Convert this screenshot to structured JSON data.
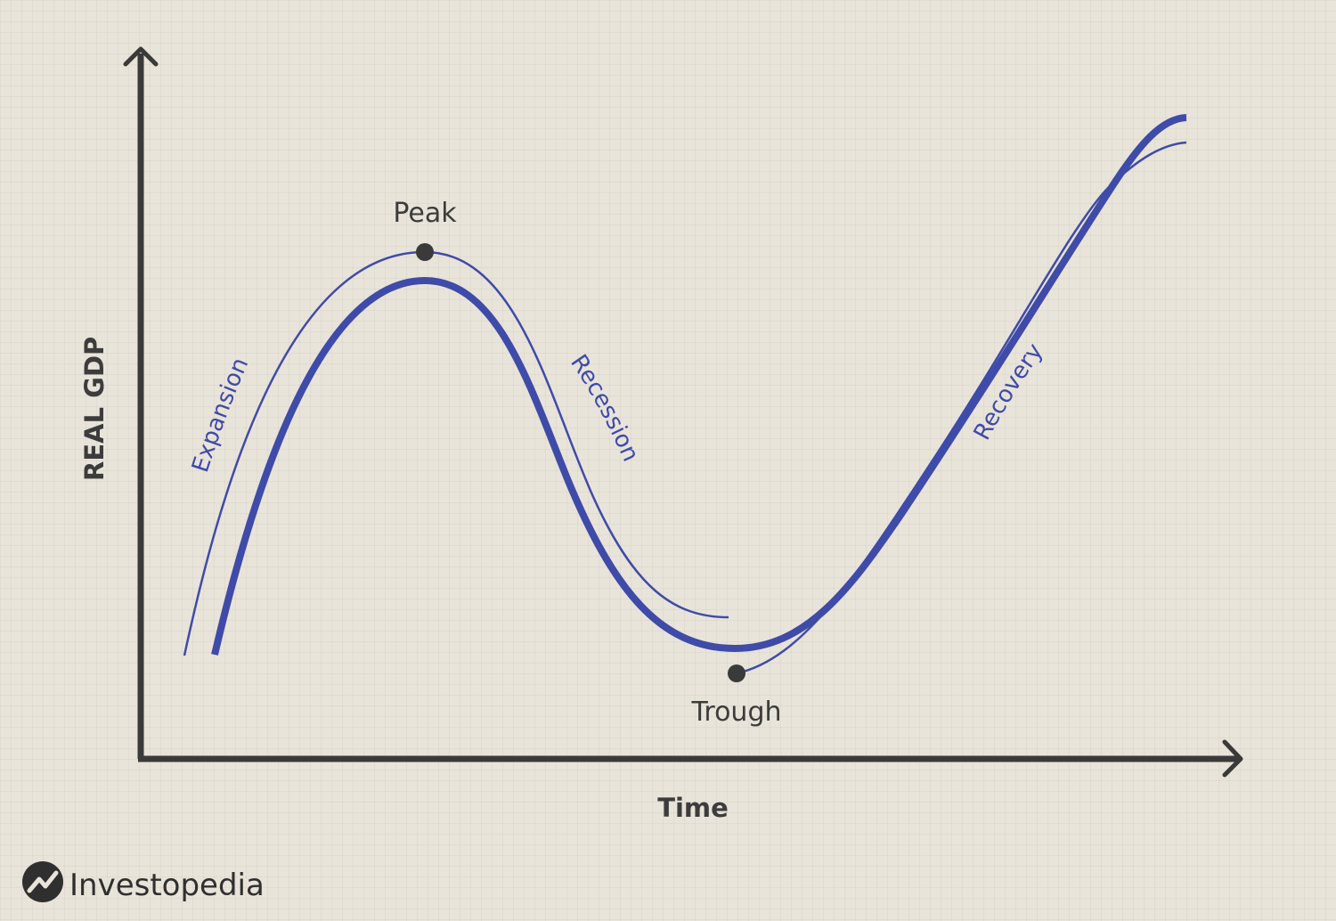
{
  "axes": {
    "y_label": "REAL GDP",
    "x_label": "Time"
  },
  "points": {
    "peak": "Peak",
    "trough": "Trough"
  },
  "phases": {
    "expansion": "Expansion",
    "recession": "Recession",
    "recovery": "Recovery"
  },
  "brand": {
    "name": "Investopedia"
  },
  "colors": {
    "curve": "#3f4ba8",
    "axis": "#3a3a3a",
    "text": "#3c3c3c",
    "background": "#e9e4da"
  }
}
